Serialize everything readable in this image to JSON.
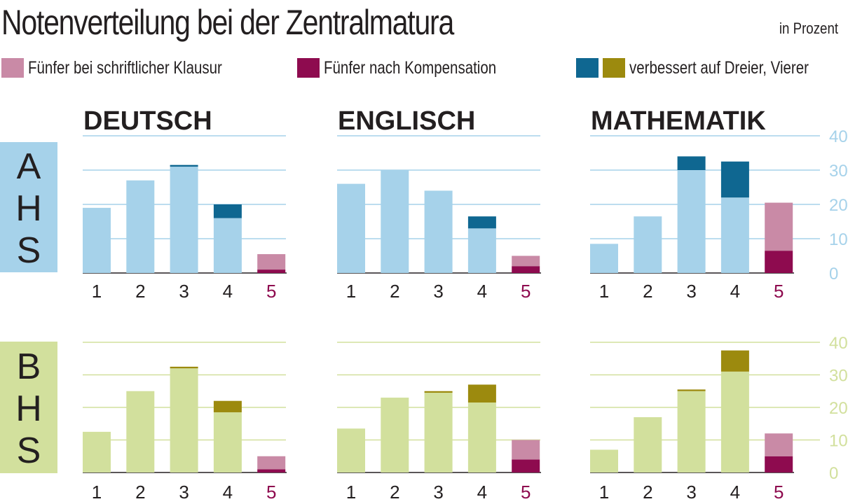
{
  "title": "Notenverteilung bei der Zentralmatura",
  "unit": "in Prozent",
  "legend": [
    {
      "label": "Fünfer bei schriftlicher Klausur",
      "colors": [
        "#c98aa6"
      ]
    },
    {
      "label": "Fünfer nach Kompensation",
      "colors": [
        "#8e0b4f"
      ]
    },
    {
      "label": "verbessert auf Dreier, Vierer",
      "colors": [
        "#0f6791",
        "#9c8a0e"
      ]
    }
  ],
  "colors": {
    "ahs_base": "#a6d2ea",
    "ahs_improved": "#0f6791",
    "ahs_grid": "#a6d2ea",
    "ahs_label_bg": "#a6d2ea",
    "bhs_base": "#d2e09d",
    "bhs_improved": "#9c8a0e",
    "bhs_grid": "#d2e09d",
    "bhs_label_bg": "#d2e09d",
    "fail_written": "#c98aa6",
    "fail_after": "#8e0b4f"
  },
  "chart_data": {
    "type": "bar",
    "stacked": true,
    "categories": [
      "1",
      "2",
      "3",
      "4",
      "5"
    ],
    "ylim": [
      0,
      40
    ],
    "yticks": [
      "0",
      "10",
      "20",
      "30",
      "40"
    ],
    "subjects": [
      "DEUTSCH",
      "ENGLISCH",
      "MATHEMATIK"
    ],
    "rows": [
      {
        "name": "AHS",
        "letters": [
          "A",
          "H",
          "S"
        ],
        "panels": [
          {
            "subject": "DEUTSCH",
            "grades": {
              "base": [
                19,
                27,
                31,
                16,
                1
              ],
              "improved": [
                0,
                0,
                0.5,
                4,
                0
              ],
              "fail_written_extra": [
                0,
                0,
                0,
                0,
                4.5
              ]
            }
          },
          {
            "subject": "ENGLISCH",
            "grades": {
              "base": [
                26,
                30,
                24,
                13,
                2
              ],
              "improved": [
                0,
                0,
                0,
                3.5,
                0
              ],
              "fail_written_extra": [
                0,
                0,
                0,
                0,
                3
              ]
            }
          },
          {
            "subject": "MATHEMATIK",
            "grades": {
              "base": [
                8.5,
                16.5,
                30,
                22,
                6.5
              ],
              "improved": [
                0,
                0,
                4,
                10.5,
                0
              ],
              "fail_written_extra": [
                0,
                0,
                0,
                0,
                14
              ]
            }
          }
        ]
      },
      {
        "name": "BHS",
        "letters": [
          "B",
          "H",
          "S"
        ],
        "panels": [
          {
            "subject": "DEUTSCH",
            "grades": {
              "base": [
                12.5,
                25,
                32,
                18.5,
                1
              ],
              "improved": [
                0,
                0,
                0.5,
                3.5,
                0
              ],
              "fail_written_extra": [
                0,
                0,
                0,
                0,
                4
              ]
            }
          },
          {
            "subject": "ENGLISCH",
            "grades": {
              "base": [
                13.5,
                23,
                24.5,
                21.5,
                4
              ],
              "improved": [
                0,
                0,
                0.5,
                5.5,
                0
              ],
              "fail_written_extra": [
                0,
                0,
                0,
                0,
                6
              ]
            }
          },
          {
            "subject": "MATHEMATIK",
            "grades": {
              "base": [
                7,
                17,
                25,
                31,
                5
              ],
              "improved": [
                0,
                0,
                0.5,
                6.5,
                0
              ],
              "fail_written_extra": [
                0,
                0,
                0,
                0,
                7
              ]
            }
          }
        ]
      }
    ]
  }
}
